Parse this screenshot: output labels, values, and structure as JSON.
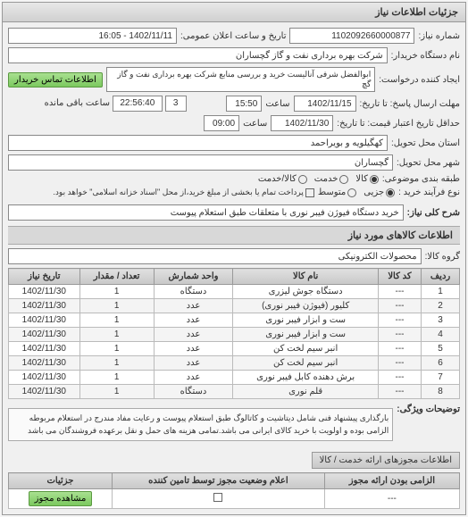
{
  "panel_title": "جزئیات اطلاعات نیاز",
  "request_number": {
    "label": "شماره نیاز:",
    "value": "1102092660000877"
  },
  "announce_date": {
    "label": "تاریخ و ساعت اعلان عمومی:",
    "value": "1402/11/11 - 16:05"
  },
  "buyer_name": {
    "label": "نام دستگاه خریدار:",
    "value": "شرکت بهره برداری نفت و گاز گچساران"
  },
  "requester": {
    "label": "ایجاد کننده درخواست:",
    "value": "ابوالفضل شرفی آنالیست خرید و بررسی منابع شرکت بهره برداری نفت و گاز گچ"
  },
  "contact_btn": "اطلاعات تماس خریدار",
  "deadline_send": {
    "label": "مهلت ارسال پاسخ: تا تاریخ:",
    "date": "1402/11/15",
    "time_label": "ساعت",
    "time": "15:50"
  },
  "countdown": {
    "days": "3",
    "time": "22:56:40",
    "suffix": "ساعت باقی مانده"
  },
  "validity": {
    "label": "حداقل تاریخ اعتبار قیمت: تا تاریخ:",
    "date": "1402/11/30",
    "time_label": "ساعت",
    "time": "09:00"
  },
  "province": {
    "label": "استان محل تحویل:",
    "value": "کهگیلویه و بویراحمد"
  },
  "city": {
    "label": "شهر محل تحویل:",
    "value": "گچساران"
  },
  "budget_class": {
    "label": "طبقه بندی موضوعی:",
    "options": [
      "کالا",
      "خدمت",
      "کالا/خدمت"
    ],
    "selected": 0
  },
  "purchase_type": {
    "label": "نوع فرآیند خرید :",
    "options": [
      "جزیی",
      "متوسط"
    ],
    "selected": 0,
    "note": "پرداخت تمام یا بخشی از مبلغ خرید،از محل \"اسناد خزانه اسلامی\" خواهد بود."
  },
  "general_desc": {
    "label": "شرح کلی نیاز:",
    "value": "خرید دستگاه فیوژن فیبر نوری با متعلقات طبق استعلام پیوست"
  },
  "goods_section": "اطلاعات کالاهای مورد نیاز",
  "goods_group": {
    "label": "گروه کالا:",
    "value": "محصولات الکترونیکی"
  },
  "table": {
    "headers": [
      "ردیف",
      "کد کالا",
      "نام کالا",
      "واحد شمارش",
      "تعداد / مقدار",
      "تاریخ نیاز"
    ],
    "rows": [
      [
        "1",
        "---",
        "دستگاه جوش لیزری",
        "دستگاه",
        "1",
        "1402/11/30"
      ],
      [
        "2",
        "---",
        "کلیور (فیوژن فیبر نوری)",
        "عدد",
        "1",
        "1402/11/30"
      ],
      [
        "3",
        "---",
        "ست و ابزار فیبر نوری",
        "عدد",
        "1",
        "1402/11/30"
      ],
      [
        "4",
        "---",
        "ست و ابزار فیبر نوری",
        "عدد",
        "1",
        "1402/11/30"
      ],
      [
        "5",
        "---",
        "انبر سیم لخت کن",
        "عدد",
        "1",
        "1402/11/30"
      ],
      [
        "6",
        "---",
        "انبر سیم لخت کن",
        "عدد",
        "1",
        "1402/11/30"
      ],
      [
        "7",
        "---",
        "برش دهنده کابل فیبر نوری",
        "عدد",
        "1",
        "1402/11/30"
      ],
      [
        "8",
        "---",
        "قلم نوری",
        "دستگاه",
        "1",
        "1402/11/30"
      ]
    ]
  },
  "notes": {
    "label": "توضیحات ویژگی:",
    "text": "بارگذاری پیشنهاد فنی شامل دیتاشیت و کاتالوگ طبق استعلام پیوست و رعایت مفاد مندرج در استعلام مربوطه الزامی بوده و اولویت با خرید کالای ایرانی می باشد.تمامی هزینه های حمل و نقل برعهده فروشندگان می باشد"
  },
  "subtab": "اطلاعات مجوزهای ارائه خدمت / کالا",
  "table2": {
    "headers": [
      "الزامی بودن ارائه مجوز",
      "اعلام وضعیت مجوز توسط تامین کننده",
      "جزئیات"
    ],
    "row": [
      "---",
      "×",
      ""
    ],
    "btn": "مشاهده مجوز"
  },
  "colors": {
    "panel_bg": "#f0f0f0",
    "header_grad_top": "#e8e8e8",
    "header_grad_bot": "#d0d0d0",
    "btn_grad_top": "#a8e090",
    "btn_grad_bot": "#7bc95f"
  }
}
